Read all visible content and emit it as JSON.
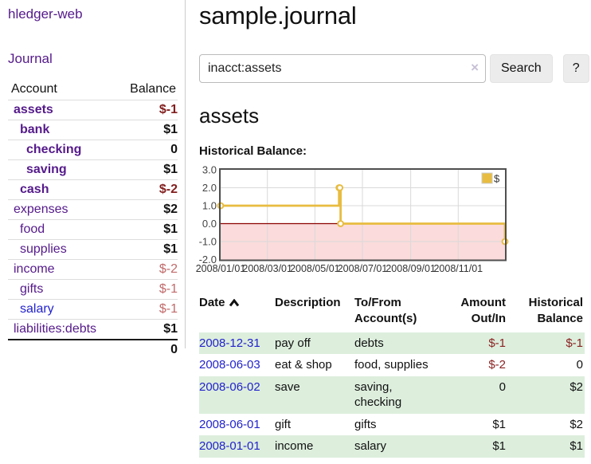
{
  "brand": "hledger-web",
  "sidebar": {
    "journal_link": "Journal",
    "accounts_header": {
      "account": "Account",
      "balance": "Balance"
    },
    "accounts": [
      {
        "name": "assets",
        "balance": "$-1",
        "depth": 0,
        "bold": true,
        "neg": "strong"
      },
      {
        "name": "bank",
        "balance": "$1",
        "depth": 1,
        "bold": true
      },
      {
        "name": "checking",
        "balance": "0",
        "depth": 2,
        "bold": true
      },
      {
        "name": "saving",
        "balance": "$1",
        "depth": 2,
        "bold": true
      },
      {
        "name": "cash",
        "balance": "$-2",
        "depth": 1,
        "bold": true,
        "neg": "strong"
      },
      {
        "name": "expenses",
        "balance": "$2",
        "depth": 0
      },
      {
        "name": "food",
        "balance": "$1",
        "depth": 1
      },
      {
        "name": "supplies",
        "balance": "$1",
        "depth": 1
      },
      {
        "name": "income",
        "balance": "$-2",
        "depth": 0,
        "neg": "soft"
      },
      {
        "name": "gifts",
        "balance": "$-1",
        "depth": 1,
        "neg": "soft"
      },
      {
        "name": "salary",
        "balance": "$-1",
        "depth": 1,
        "neg": "soft",
        "link_style": "unvisited"
      },
      {
        "name": "liabilities:debts",
        "balance": "$1",
        "depth": 0
      }
    ],
    "total": "0"
  },
  "header": {
    "title": "sample.journal"
  },
  "search": {
    "value": "inacct:assets",
    "clear_icon": "×",
    "button": "Search",
    "help_button": "?"
  },
  "account_page": {
    "heading": "assets",
    "chart_label": "Historical Balance:"
  },
  "chart_data": {
    "type": "line",
    "title": "Historical Balance",
    "step": true,
    "series": [
      {
        "name": "$",
        "x": [
          "2008-01-01",
          "2008-06-01",
          "2008-06-02",
          "2008-06-03",
          "2008-12-31"
        ],
        "values": [
          1,
          2,
          2,
          0,
          -1
        ]
      }
    ],
    "ylim": [
      -2,
      3
    ],
    "ytick_labels": [
      "3.0",
      "2.0",
      "1.0",
      "0.0",
      "-1.0",
      "-2.0"
    ],
    "ytick_values": [
      3,
      2,
      1,
      0,
      -1,
      -2
    ],
    "xtick_dates": [
      "2008-01-01",
      "2008-03-01",
      "2008-05-01",
      "2008-07-01",
      "2008-09-01",
      "2008-11-01"
    ],
    "xtick_labels": [
      "2008/01/01",
      "2008/03/01",
      "2008/05/01",
      "2008/07/01",
      "2008/09/01",
      "2008/11/01"
    ],
    "xrange": [
      "2008-01-01",
      "2008-12-31"
    ],
    "legend": "$",
    "legend_position": "top-right",
    "grid": true,
    "line_color": "#e8bc40",
    "marker_fill": "#ffffff",
    "negative_region_color": "#fbdbdb",
    "zero_line_color": "#8b0000",
    "border_color": "#4f4f4f",
    "gridline_color": "#d9d9d9"
  },
  "register": {
    "columns": [
      "Date",
      "Description",
      "To/From Account(s)",
      "Amount Out/In",
      "Historical Balance"
    ],
    "sort_icon": "sort-ascending",
    "rows": [
      {
        "date": "2008-12-31",
        "description": "pay off",
        "accounts": "debts",
        "amount": "$-1",
        "balance": "$-1",
        "amount_neg": true,
        "balance_neg": true
      },
      {
        "date": "2008-06-03",
        "description": "eat & shop",
        "accounts": "food, supplies",
        "amount": "$-2",
        "balance": "0",
        "amount_neg": true,
        "balance_neg": false
      },
      {
        "date": "2008-06-02",
        "description": "save",
        "accounts": "saving, checking",
        "amount": "0",
        "balance": "$2",
        "amount_neg": false,
        "balance_neg": false
      },
      {
        "date": "2008-06-01",
        "description": "gift",
        "accounts": "gifts",
        "amount": "$1",
        "balance": "$2",
        "amount_neg": false,
        "balance_neg": false
      },
      {
        "date": "2008-01-01",
        "description": "income",
        "accounts": "salary",
        "amount": "$1",
        "balance": "$1",
        "amount_neg": false,
        "balance_neg": false
      }
    ]
  },
  "colors": {
    "link_purple": "#551a8b",
    "link_blue": "#2222cc",
    "negative_strong": "#821e1e",
    "negative_soft": "#c16a6a",
    "table_negative": "#8b2323",
    "row_green": "#ddeedd",
    "button_bg": "#ececec"
  }
}
